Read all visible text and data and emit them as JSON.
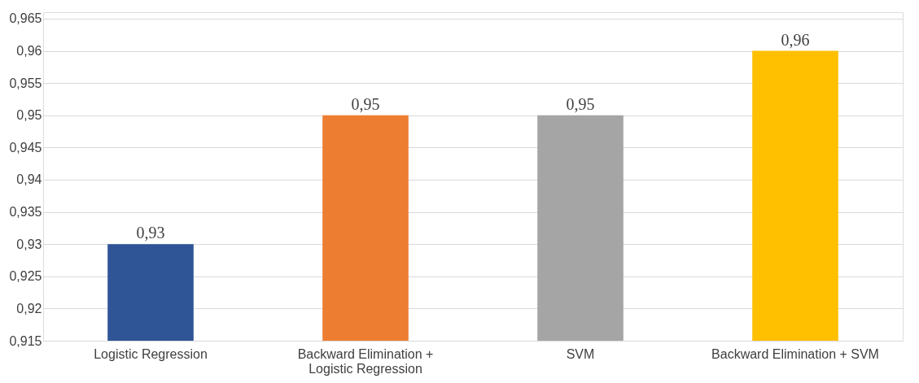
{
  "chart_data": {
    "type": "bar",
    "categories": [
      "Logistic Regression",
      "Backward Elimination + Logistic Regression",
      "SVM",
      "Backward Elimination + SVM"
    ],
    "values": [
      0.93,
      0.95,
      0.95,
      0.96
    ],
    "value_labels": [
      "0,93",
      "0,95",
      "0,95",
      "0,96"
    ],
    "colors": [
      "#2f5597",
      "#ed7d31",
      "#a5a5a5",
      "#ffc000"
    ],
    "ylim": [
      0.915,
      0.966
    ],
    "yticks": [
      {
        "value": 0.915,
        "label": "0,915"
      },
      {
        "value": 0.92,
        "label": "0,92"
      },
      {
        "value": 0.925,
        "label": "0,925"
      },
      {
        "value": 0.93,
        "label": "0,93"
      },
      {
        "value": 0.935,
        "label": "0,935"
      },
      {
        "value": 0.94,
        "label": "0,94"
      },
      {
        "value": 0.945,
        "label": "0,945"
      },
      {
        "value": 0.95,
        "label": "0,95"
      },
      {
        "value": 0.955,
        "label": "0,955"
      },
      {
        "value": 0.96,
        "label": "0,96"
      },
      {
        "value": 0.965,
        "label": "0,965"
      }
    ],
    "grid": "y"
  }
}
